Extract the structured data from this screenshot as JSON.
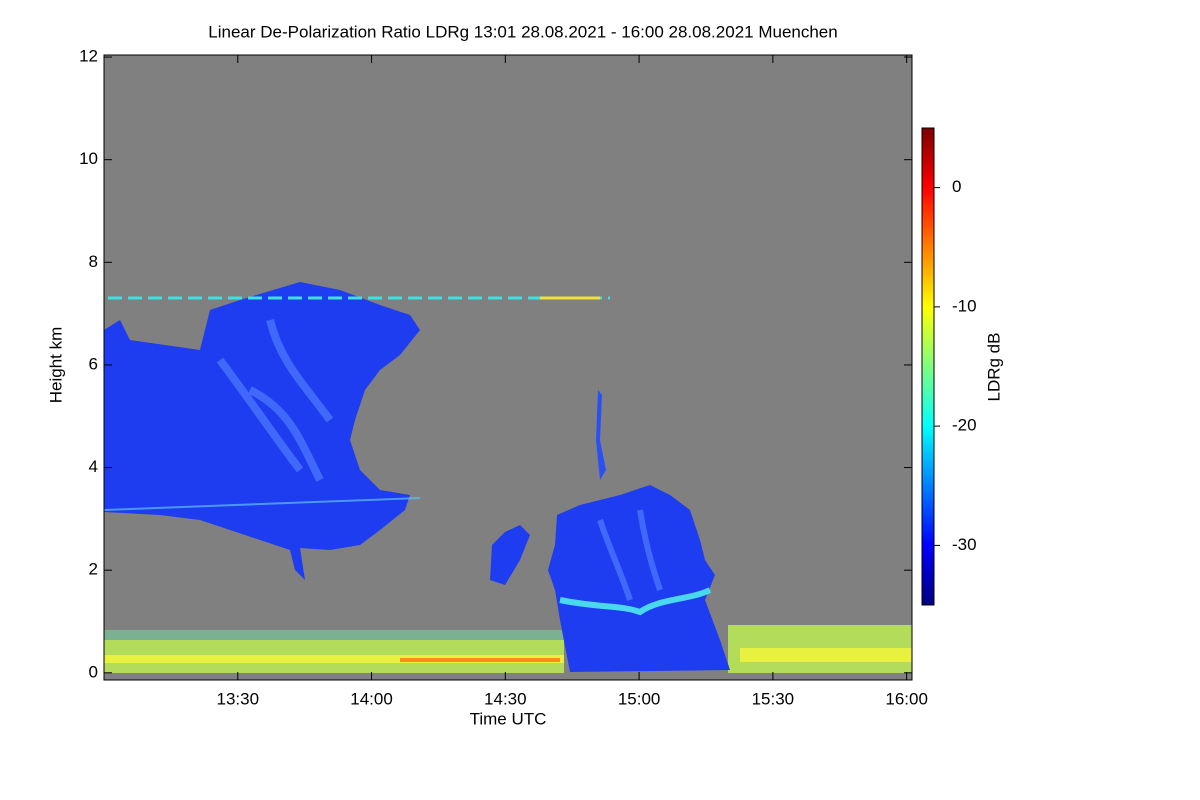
{
  "chart_data": {
    "type": "heatmap",
    "title": "Linear De-Polarization Ratio LDRg   13:01 28.08.2021 - 16:00 28.08.2021 Muenchen",
    "x_label": "Time UTC",
    "y_label": "Height km",
    "colorbar_label": "LDRg dB",
    "xlim": [
      13.0,
      16.02
    ],
    "xticks": [
      {
        "value": 13.5,
        "label": "13:30"
      },
      {
        "value": 14.0,
        "label": "14:00"
      },
      {
        "value": 14.5,
        "label": "14:30"
      },
      {
        "value": 15.0,
        "label": "15:00"
      },
      {
        "value": 15.5,
        "label": "15:30"
      },
      {
        "value": 16.0,
        "label": "16:00"
      }
    ],
    "ylim": [
      -0.14,
      12.04
    ],
    "yticks": [
      0,
      2,
      4,
      6,
      8,
      10,
      12
    ],
    "zlim": [
      -35,
      5
    ],
    "zticks": [
      0,
      -10,
      -20,
      -30
    ],
    "colormap": "jet",
    "background": "#808080"
  }
}
